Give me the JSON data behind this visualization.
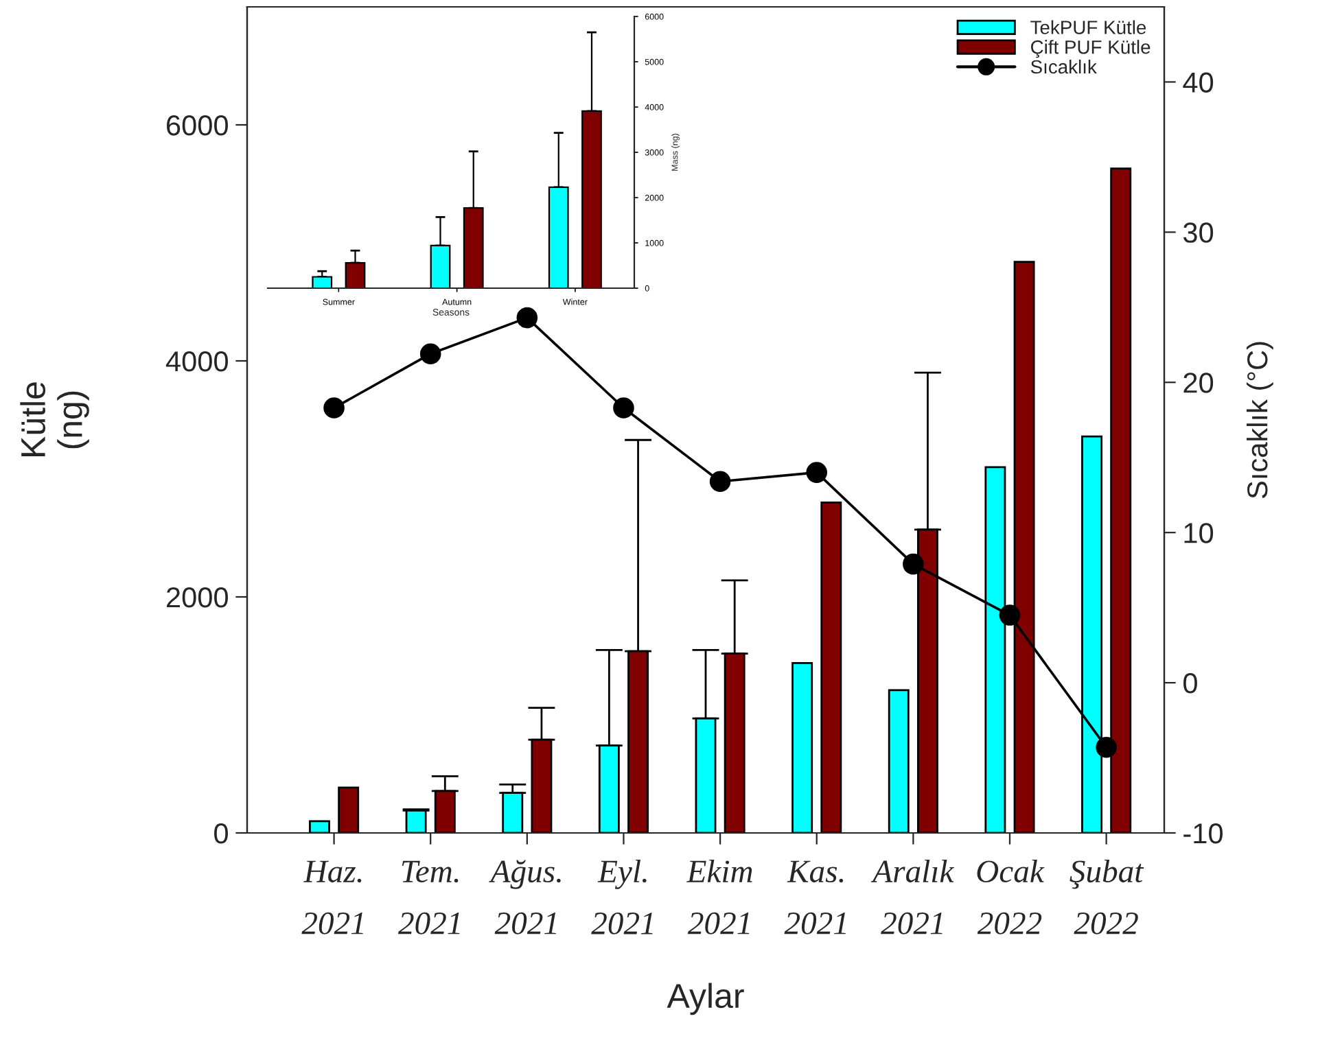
{
  "chart_data": [
    {
      "type": "bar",
      "xlabel": "Aylar",
      "ylabel": "Kütle\n(ng)",
      "y2label": "Sıcaklık (°C)",
      "categories": [
        "Haz.\n2021",
        "Tem.\n2021",
        "Ağus.\n2021",
        "Eyl.\n2021",
        "Ekim\n2021",
        "Kas.\n2021",
        "Aralık\n2021",
        "Ocak\n2022",
        "Şubat\n2022"
      ],
      "series": [
        {
          "name": "TekPUF Kütle",
          "color": "#00ffff",
          "values": [
            100,
            190,
            340,
            740,
            970,
            1440,
            1210,
            3100,
            3360
          ],
          "errors": [
            null,
            [
              190,
              200
            ],
            [
              340,
              410
            ],
            [
              740,
              1550
            ],
            [
              970,
              1550
            ],
            null,
            null,
            null,
            null
          ]
        },
        {
          "name": "Çift PUF Kütle",
          "color": "#800000",
          "values": [
            385,
            355,
            790,
            1540,
            1520,
            2800,
            2570,
            4840,
            5630
          ],
          "errors": [
            null,
            [
              355,
              480
            ],
            [
              790,
              1060
            ],
            [
              1540,
              3330
            ],
            [
              1520,
              2140
            ],
            null,
            [
              2570,
              3900
            ],
            null,
            null
          ]
        },
        {
          "name": "Sıcaklık",
          "type": "line",
          "axis": "y2",
          "color": "#000000",
          "marker": "circle",
          "values": [
            18.3,
            21.9,
            24.3,
            18.3,
            13.4,
            14.0,
            7.9,
            4.5,
            -4.3
          ]
        }
      ],
      "ylim": [
        0,
        7000
      ],
      "yticks": [
        0,
        2000,
        4000,
        6000
      ],
      "y2lim": [
        -10,
        45
      ],
      "y2ticks": [
        -10,
        0,
        10,
        20,
        30,
        40
      ],
      "legend": "top right",
      "grid": false
    },
    {
      "type": "bar",
      "xlabel": "Seasons",
      "ylabel": "Mass (ng)",
      "categories": [
        "Summer",
        "Autumn",
        "Winter"
      ],
      "series": [
        {
          "color": "#00ffff",
          "values": [
            250,
            940,
            2230
          ],
          "errors": [
            [
              250,
              375
            ],
            [
              940,
              1570
            ],
            [
              2230,
              3430
            ]
          ]
        },
        {
          "color": "#800000",
          "values": [
            560,
            1770,
            3910
          ],
          "errors": [
            [
              560,
              830
            ],
            [
              1770,
              3020
            ],
            [
              3910,
              5650
            ]
          ]
        }
      ],
      "ylim": [
        0,
        6000
      ],
      "yticks": [
        0,
        1000,
        2000,
        3000,
        4000,
        5000,
        6000
      ],
      "legend": false,
      "grid": false
    }
  ]
}
